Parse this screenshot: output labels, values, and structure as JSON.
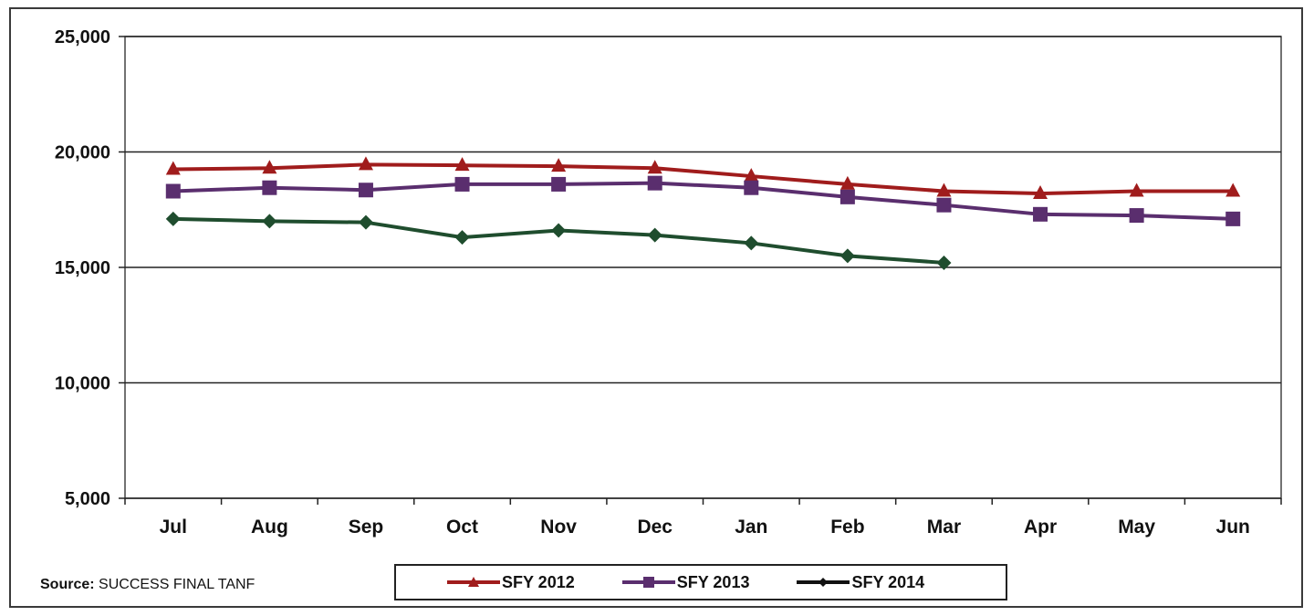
{
  "chart_data": {
    "type": "line",
    "title": "",
    "xlabel": "",
    "ylabel": "",
    "categories": [
      "Jul",
      "Aug",
      "Sep",
      "Oct",
      "Nov",
      "Dec",
      "Jan",
      "Feb",
      "Mar",
      "Apr",
      "May",
      "Jun"
    ],
    "ylim": [
      5000,
      25000
    ],
    "yticks": [
      5000,
      10000,
      15000,
      20000,
      25000
    ],
    "ytick_labels": [
      "5,000",
      "10,000",
      "15,000",
      "20,000",
      "25,000"
    ],
    "grid": true,
    "legend_position": "bottom",
    "series": [
      {
        "name": "SFY 2012",
        "color": "#a01c1c",
        "marker": "triangle",
        "values": [
          19250,
          19300,
          19450,
          19420,
          19380,
          19300,
          18950,
          18600,
          18300,
          18200,
          18300,
          18300
        ]
      },
      {
        "name": "SFY 2013",
        "color": "#5a2e6e",
        "marker": "square",
        "values": [
          18300,
          18450,
          18350,
          18600,
          18600,
          18650,
          18450,
          18050,
          17700,
          17300,
          17250,
          17100
        ]
      },
      {
        "name": "SFY 2014",
        "color": "#1f4d2e",
        "marker": "diamond",
        "values": [
          17100,
          17000,
          16950,
          16300,
          16600,
          16400,
          16050,
          15500,
          15200,
          null,
          null,
          null
        ]
      }
    ]
  },
  "source": {
    "label": "Source:",
    "text": "SUCCESS FINAL TANF"
  }
}
